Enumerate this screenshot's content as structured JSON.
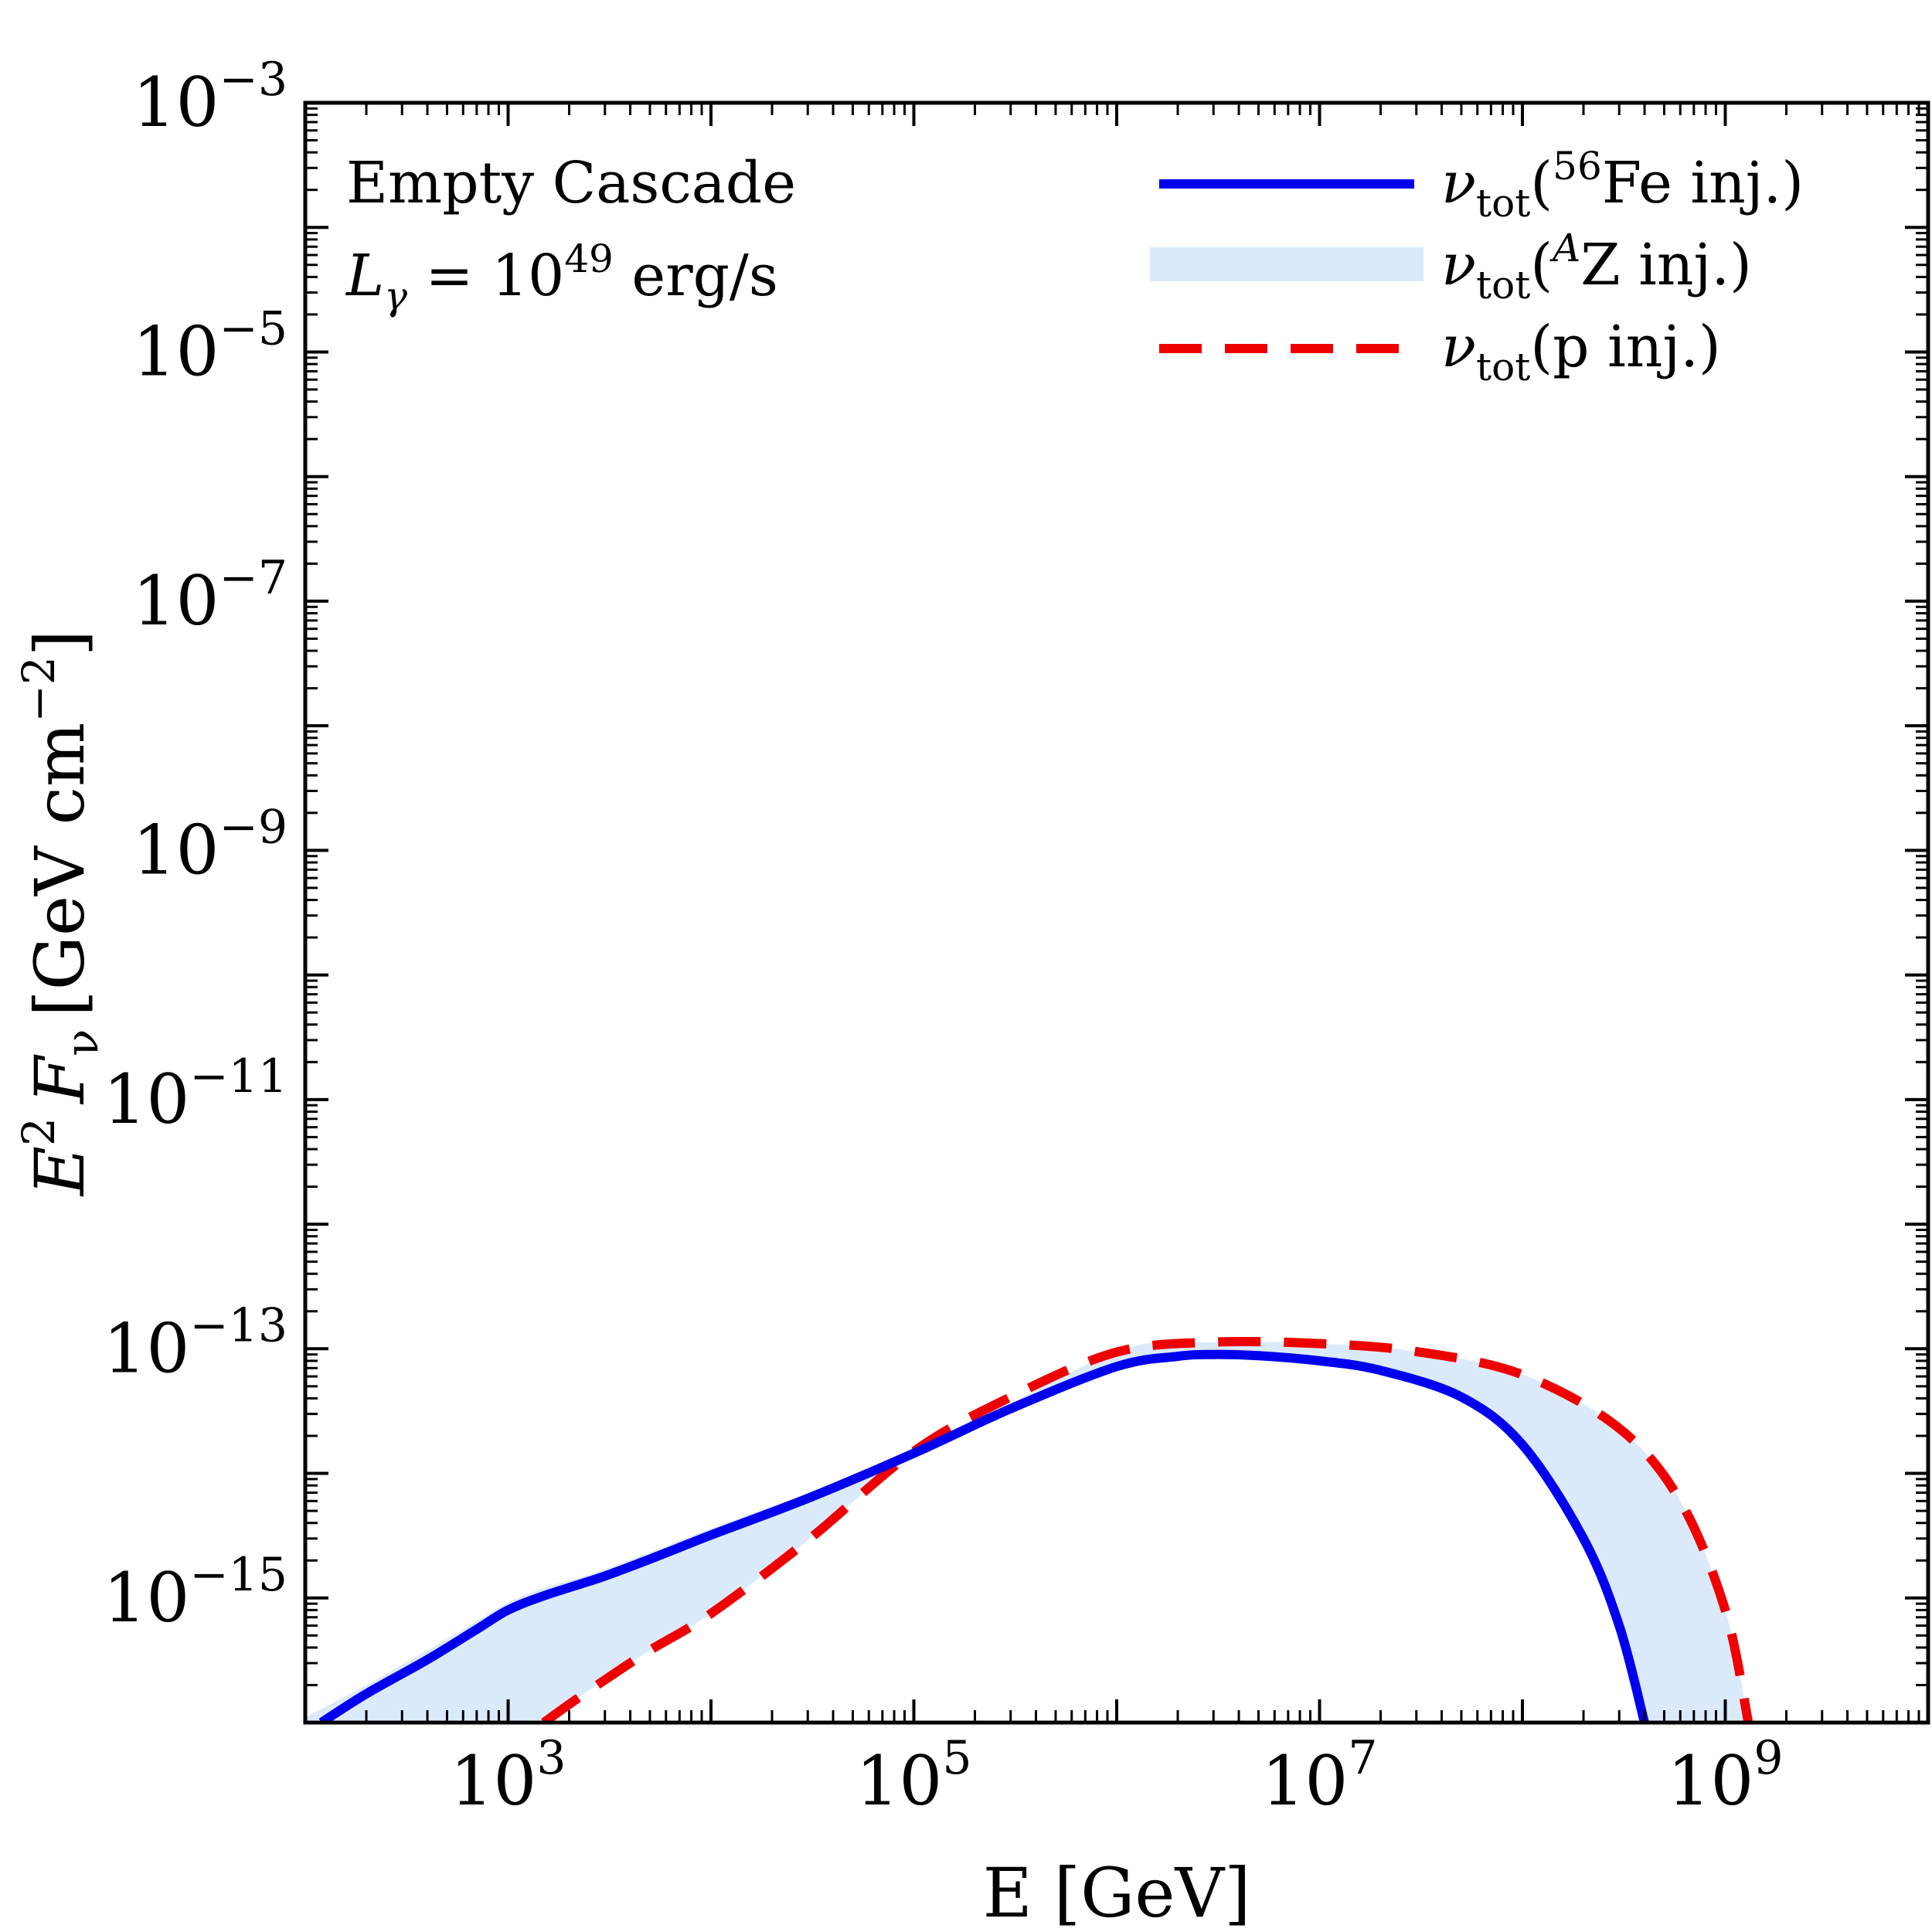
{
  "chart_data": {
    "type": "line",
    "xscale": "log",
    "yscale": "log",
    "xlim": [
      100,
      10000000000
    ],
    "ylim": [
      1e-16,
      0.001
    ],
    "xlabel": "E [GeV]",
    "ylabel": {
      "main": "E",
      "sup": "2",
      "mid": "F",
      "sub": "ν",
      "unit": "[GeV cm",
      "unit_sup": "−2",
      "unit_end": "]"
    },
    "x_ticks": [
      {
        "value": 1000,
        "base": "10",
        "exp": "3"
      },
      {
        "value": 100000,
        "base": "10",
        "exp": "5"
      },
      {
        "value": 10000000,
        "base": "10",
        "exp": "7"
      },
      {
        "value": 1000000000,
        "base": "10",
        "exp": "9"
      }
    ],
    "y_ticks": [
      {
        "value": 0.001,
        "base": "10",
        "exp": "−3"
      },
      {
        "value": 1e-05,
        "base": "10",
        "exp": "−5"
      },
      {
        "value": 1e-07,
        "base": "10",
        "exp": "−7"
      },
      {
        "value": 1e-09,
        "base": "10",
        "exp": "−9"
      },
      {
        "value": 1e-11,
        "base": "10",
        "exp": "−11"
      },
      {
        "value": 1e-13,
        "base": "10",
        "exp": "−13"
      },
      {
        "value": 1e-15,
        "base": "10",
        "exp": "−15"
      }
    ],
    "annotations": {
      "title": "Empty Cascade",
      "lum_symbol": "L",
      "lum_sub": "γ",
      "lum_eq": " = 10",
      "lum_exp": "49",
      "lum_unit": " erg/s"
    },
    "legend": [
      {
        "symbol": "ν",
        "sub": "tot",
        "pre": "(",
        "sup": "56",
        "text": "Fe inj.)",
        "style": "solid",
        "color": "#0000ee"
      },
      {
        "symbol": "ν",
        "sub": "tot",
        "pre": "(",
        "sup": "A",
        "text": "Z inj.)",
        "style": "band",
        "color": "#dbeafa"
      },
      {
        "symbol": "ν",
        "sub": "tot",
        "pre": "(",
        "sup": "",
        "text": "p inj.)",
        "style": "dashed",
        "color": "#ee0000"
      }
    ],
    "legend_position": "top-right",
    "series": [
      {
        "name": "ν_tot(56Fe inj.)",
        "color": "#0000ee",
        "x": [
          120,
          200,
          400,
          700,
          1000,
          1500,
          3000,
          6000,
          10000,
          30000,
          100000,
          300000,
          1000000,
          2000000,
          3000000,
          5000000,
          10000000,
          20000000,
          50000000,
          100000000,
          200000000,
          300000000,
          400000000
        ],
        "y": [
          1e-16,
          1.7e-16,
          3.2e-16,
          5.6e-16,
          8e-16,
          1.04e-15,
          1.5e-15,
          2.3e-15,
          3.2e-15,
          6.3e-15,
          1.45e-14,
          3.3e-14,
          7.2e-14,
          8.7e-14,
          9e-14,
          8.8e-14,
          8e-14,
          6.7e-14,
          4.1e-14,
          1.7e-14,
          3e-15,
          6e-16,
          1e-16
        ]
      },
      {
        "name": "ν_tot(p inj.)",
        "color": "#ee0000",
        "x": [
          1500,
          2000,
          3000,
          5000,
          10000,
          30000,
          100000,
          300000,
          1000000,
          3000000,
          10000000,
          30000000,
          100000000,
          300000000,
          600000000,
          1000000000,
          1300000000
        ],
        "y": [
          1e-16,
          1.4e-16,
          2.2e-16,
          3.8e-16,
          7.5e-16,
          2.9e-15,
          1.5e-14,
          4.1e-14,
          9.4e-14,
          1.13e-13,
          1.1e-13,
          9.5e-14,
          6.2e-14,
          2.3e-14,
          6e-15,
          8e-16,
          1e-16
        ]
      },
      {
        "name": "ν_tot(AZ inj.) band upper",
        "color": "#dbeafa",
        "x": [
          100,
          200,
          400,
          700,
          1000,
          1500,
          3000,
          10000,
          100000,
          1000000,
          3000000,
          10000000,
          30000000,
          100000000,
          300000000,
          600000000,
          1000000000,
          1300000000
        ],
        "y": [
          1.1e-16,
          2e-16,
          3.8e-16,
          6.5e-16,
          9.2e-16,
          1.2e-15,
          1.7e-15,
          3.6e-15,
          1.5e-14,
          9.4e-14,
          1.13e-13,
          1.1e-13,
          9.5e-14,
          6.2e-14,
          2.3e-14,
          6e-15,
          8e-16,
          1e-16
        ]
      },
      {
        "name": "ν_tot(AZ inj.) band lower",
        "color": "#dbeafa",
        "x": [
          100,
          120,
          200,
          400,
          700,
          1000,
          1500,
          2000,
          3000,
          5000,
          10000,
          30000,
          100000,
          300000,
          1000000,
          2000000,
          3000000,
          5000000,
          10000000,
          20000000,
          50000000,
          100000000,
          200000000,
          300000000,
          400000000
        ],
        "y": [
          1e-16,
          1e-16,
          1e-16,
          1e-16,
          1e-16,
          1e-16,
          1e-16,
          1.4e-16,
          2.2e-16,
          3.8e-16,
          7.5e-16,
          2.9e-15,
          1.45e-14,
          3.3e-14,
          7.2e-14,
          8.7e-14,
          9e-14,
          8.8e-14,
          8e-14,
          6.7e-14,
          4.1e-14,
          1.7e-14,
          3e-15,
          6e-16,
          1e-16
        ]
      }
    ]
  }
}
